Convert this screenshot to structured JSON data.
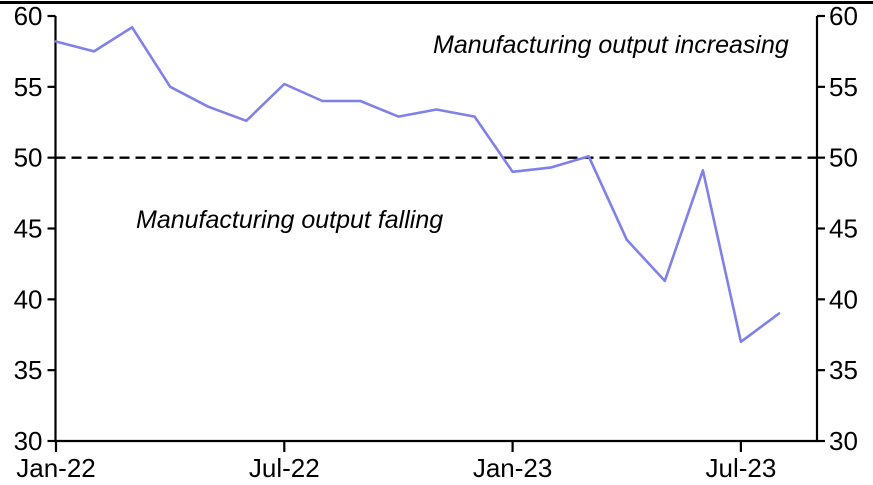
{
  "chart_data": {
    "type": "line",
    "categories": [
      "Jan-22",
      "Feb-22",
      "Mar-22",
      "Apr-22",
      "May-22",
      "Jun-22",
      "Jul-22",
      "Aug-22",
      "Sep-22",
      "Oct-22",
      "Nov-22",
      "Dec-22",
      "Jan-23",
      "Feb-23",
      "Mar-23",
      "Apr-23",
      "May-23",
      "Jun-23",
      "Jul-23",
      "Aug-23"
    ],
    "values": [
      58.2,
      57.5,
      59.2,
      55.0,
      53.6,
      52.6,
      55.2,
      54.0,
      54.0,
      52.9,
      53.4,
      52.9,
      49.0,
      49.3,
      50.1,
      44.2,
      41.3,
      49.1,
      37.0,
      39.0
    ],
    "ylim": [
      30,
      60
    ],
    "yticks": [
      30,
      35,
      40,
      45,
      50,
      55,
      60
    ],
    "xtick_labels": [
      "Jan-22",
      "Jul-22",
      "Jan-23",
      "Jul-23"
    ],
    "xtick_indices": [
      0,
      6,
      12,
      18
    ],
    "x_domain_months": 20,
    "reference_line": {
      "value": 50,
      "style": "dashed"
    },
    "annotations": [
      {
        "text": "Manufacturing output increasing",
        "zone": "above-reference-line"
      },
      {
        "text": "Manufacturing output falling",
        "zone": "below-reference-line"
      }
    ],
    "colors": {
      "line": "#7f81e8",
      "axis": "#000000",
      "reference_line": "#000000",
      "background": "#ffffff"
    },
    "grid": "off",
    "legend": "none",
    "axis_ticks": "both-left-right-bottom-outward"
  }
}
